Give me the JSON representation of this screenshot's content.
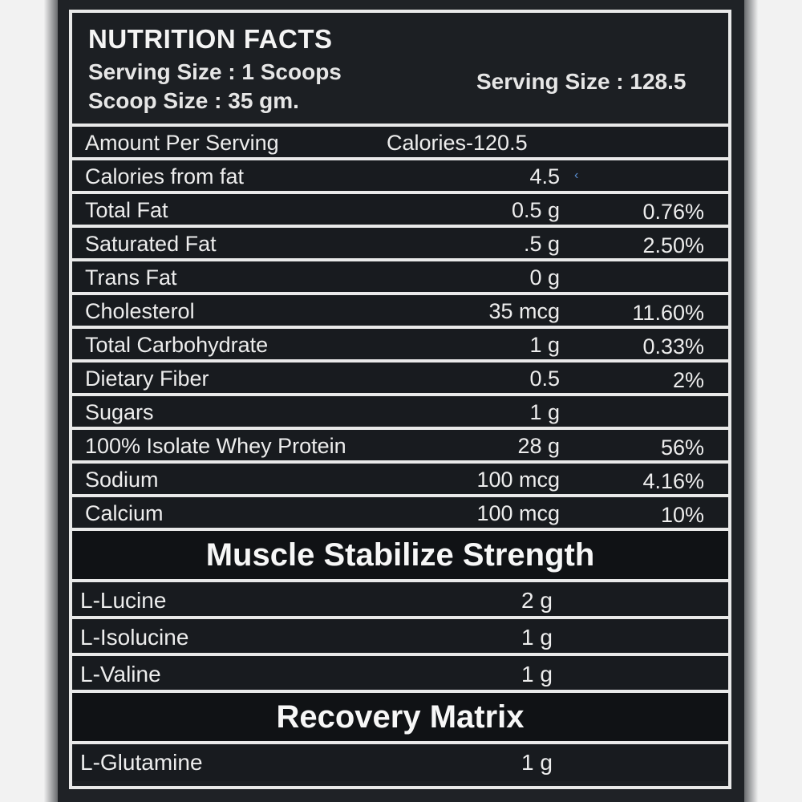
{
  "header": {
    "title": "NUTRITION FACTS",
    "serving_line": "Serving Size : 1 Scoops",
    "scoop_line": "Scoop Size : 35 gm.",
    "serving_right": "Serving Size : 128.5"
  },
  "amount_row": {
    "label": "Amount Per Serving",
    "calories": "Calories-120.5"
  },
  "nutrients": [
    {
      "label": "Calories from fat",
      "amount": "4.5",
      "percent": ""
    },
    {
      "label": "Total Fat",
      "amount": "0.5 g",
      "percent": "0.76%"
    },
    {
      "label": "Saturated Fat",
      "amount": ".5 g",
      "percent": "2.50%"
    },
    {
      "label": "Trans Fat",
      "amount": "0 g",
      "percent": ""
    },
    {
      "label": "Cholesterol",
      "amount": "35 mcg",
      "percent": "11.60%"
    },
    {
      "label": "Total Carbohydrate",
      "amount": "1 g",
      "percent": "0.33%"
    },
    {
      "label": "Dietary Fiber",
      "amount": "0.5",
      "percent": "2%"
    },
    {
      "label": "Sugars",
      "amount": "1 g",
      "percent": ""
    },
    {
      "label": "100% Isolate Whey Protein",
      "amount": "28 g",
      "percent": "56%"
    },
    {
      "label": "Sodium",
      "amount": "100 mcg",
      "percent": "4.16%"
    },
    {
      "label": "Calcium",
      "amount": "100 mcg",
      "percent": "10%"
    }
  ],
  "section1": {
    "title": "Muscle Stabilize Strength",
    "items": [
      {
        "label": "L-Lucine",
        "amount": "2 g"
      },
      {
        "label": "L-Isolucine",
        "amount": "1 g"
      },
      {
        "label": "L-Valine",
        "amount": "1 g"
      }
    ]
  },
  "section2": {
    "title": "Recovery Matrix",
    "items": [
      {
        "label": "L-Glutamine",
        "amount": "1 g"
      }
    ]
  },
  "colors": {
    "panel": "#1f2226",
    "border": "#e9e9e9",
    "text": "#ededed"
  }
}
